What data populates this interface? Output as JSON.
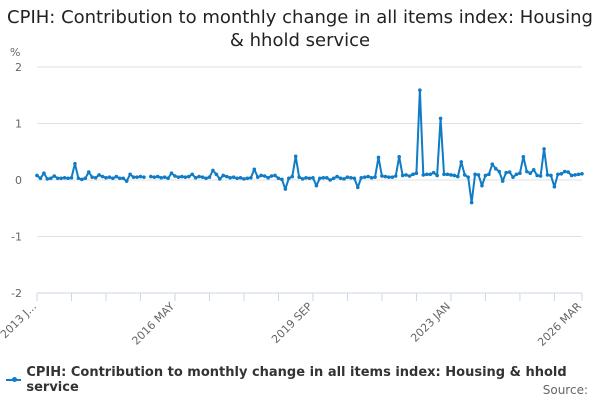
{
  "chart_data": {
    "type": "line",
    "title": "CPIH: Contribution to monthly change in all items index: Housing & hhold service",
    "ylabel": "%",
    "ylim": [
      -2,
      2
    ],
    "yticks": [
      "2",
      "1",
      "0",
      "-1",
      "-2"
    ],
    "ytick_values": [
      2,
      1,
      0,
      -1,
      -2
    ],
    "xtick_labels": [
      "2013 J...",
      "2016 MAY",
      "2019 SEP",
      "2023 JAN",
      "2026 MAR"
    ],
    "xtick_indices": [
      0,
      40,
      80,
      120,
      158
    ],
    "grid": "horizontal",
    "legend_position": "bottom",
    "color": "#0f7cc5",
    "series": [
      {
        "name": "CPIH: Contribution to monthly change in all items index: Housing & hhold service",
        "values": [
          0.08,
          0.03,
          0.12,
          0.02,
          0.03,
          0.07,
          0.03,
          0.03,
          0.04,
          0.03,
          0.04,
          0.29,
          0.03,
          0.01,
          0.03,
          0.14,
          0.05,
          0.04,
          0.09,
          0.06,
          0.04,
          0.05,
          0.03,
          0.06,
          0.03,
          0.03,
          -0.02,
          0.1,
          0.05,
          0.05,
          0.06,
          0.05,
          null,
          0.06,
          0.05,
          0.06,
          0.04,
          0.05,
          0.03,
          0.12,
          0.07,
          0.05,
          0.06,
          0.05,
          0.06,
          0.1,
          0.04,
          0.06,
          0.05,
          0.03,
          0.05,
          0.17,
          0.1,
          0.02,
          0.08,
          0.06,
          0.04,
          0.05,
          0.03,
          0.04,
          0.02,
          0.03,
          0.04,
          0.19,
          0.05,
          0.08,
          0.07,
          0.04,
          0.07,
          0.08,
          0.03,
          0.01,
          -0.16,
          0.03,
          0.06,
          0.42,
          0.05,
          0.02,
          0.04,
          0.03,
          0.04,
          -0.1,
          0.03,
          0.04,
          0.04,
          0,
          0.03,
          0.06,
          0.03,
          0.02,
          0.05,
          0.04,
          0.03,
          -0.13,
          0.04,
          0.05,
          0.06,
          0.04,
          0.05,
          0.4,
          0.07,
          0.06,
          0.05,
          0.05,
          0.07,
          0.41,
          0.08,
          0.09,
          0.07,
          0.1,
          0.12,
          1.59,
          0.09,
          0.1,
          0.1,
          0.13,
          0.08,
          1.09,
          0.1,
          0.1,
          0.09,
          0.08,
          0.06,
          0.32,
          0.09,
          0.05,
          -0.4,
          0.1,
          0.09,
          -0.1,
          0.08,
          0.1,
          0.28,
          0.2,
          0.15,
          -0.02,
          0.13,
          0.14,
          0.05,
          0.1,
          0.12,
          0.41,
          0.15,
          0.12,
          0.18,
          0.08,
          0.07,
          0.55,
          0.09,
          0.08,
          -0.12,
          0.1,
          0.11,
          0.15,
          0.14,
          0.08,
          0.09,
          0.1,
          0.11
        ]
      }
    ]
  },
  "source_label": "Source:"
}
